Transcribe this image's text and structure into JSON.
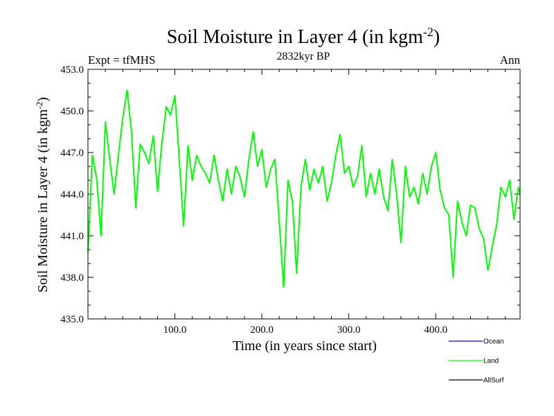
{
  "chart_data": {
    "type": "line",
    "title": "Soil Moisture in Layer 4 (in kgm",
    "title_sup": "-2",
    "title_end": ")",
    "subtitle": "2832kyr BP",
    "left_label": "Expt = tfMHS",
    "right_label": "Ann",
    "xlabel": "Time (in years since start)",
    "ylabel": "Soil Moisture in Layer 4 (in kgm",
    "ylabel_sup": "-2",
    "ylabel_end": ")",
    "xlim": [
      0,
      497
    ],
    "ylim": [
      435.0,
      453.0
    ],
    "x_ticks": [
      100,
      200,
      300,
      400
    ],
    "x_tick_labels": [
      "100.0",
      "200.0",
      "300.0",
      "400.0"
    ],
    "y_ticks": [
      435,
      438,
      441,
      444,
      447,
      450,
      453
    ],
    "y_tick_labels": [
      "435.0",
      "438.0",
      "441.0",
      "444.0",
      "447.0",
      "450.0",
      "453.0"
    ],
    "legend": [
      {
        "name": "Ocean",
        "color": "#0000ff"
      },
      {
        "name": "Land",
        "color": "#00ff00"
      },
      {
        "name": "AllSurf",
        "color": "#000000"
      }
    ],
    "series": [
      {
        "name": "Land",
        "color": "#00ff00",
        "x": [
          0,
          5,
          10,
          15,
          20,
          25,
          30,
          35,
          40,
          45,
          50,
          55,
          60,
          65,
          70,
          75,
          80,
          85,
          90,
          95,
          100,
          105,
          110,
          115,
          120,
          125,
          130,
          135,
          140,
          145,
          150,
          155,
          160,
          165,
          170,
          175,
          180,
          185,
          190,
          195,
          200,
          205,
          210,
          215,
          220,
          225,
          230,
          235,
          240,
          245,
          250,
          255,
          260,
          265,
          270,
          275,
          280,
          285,
          290,
          295,
          300,
          305,
          310,
          315,
          320,
          325,
          330,
          335,
          340,
          345,
          350,
          355,
          360,
          365,
          370,
          375,
          380,
          385,
          390,
          395,
          400,
          405,
          410,
          415,
          420,
          425,
          430,
          435,
          440,
          445,
          450,
          455,
          460,
          465,
          470,
          475,
          480,
          485,
          490,
          495,
          497
        ],
        "values": [
          439.8,
          446.8,
          445.1,
          441.0,
          449.2,
          446.5,
          444.0,
          446.8,
          449.5,
          451.5,
          448.5,
          443.0,
          447.6,
          447.0,
          446.2,
          448.2,
          444.2,
          447.7,
          450.3,
          449.7,
          451.1,
          446.5,
          441.7,
          447.5,
          445.0,
          446.8,
          446.0,
          445.5,
          444.8,
          446.8,
          445.0,
          443.5,
          445.8,
          444.0,
          446.0,
          445.2,
          443.8,
          446.5,
          448.5,
          446.0,
          447.2,
          444.5,
          445.8,
          446.5,
          442.0,
          437.3,
          445.0,
          443.5,
          438.3,
          444.5,
          446.5,
          444.3,
          445.8,
          444.8,
          446.0,
          443.5,
          444.8,
          446.8,
          448.3,
          445.5,
          446.0,
          444.5,
          445.3,
          447.5,
          443.8,
          445.5,
          444.0,
          445.8,
          443.8,
          442.8,
          446.5,
          444.0,
          440.5,
          446.0,
          443.8,
          444.5,
          443.3,
          445.5,
          444.0,
          446.0,
          447.0,
          444.3,
          443.0,
          442.5,
          438.0,
          443.5,
          442.0,
          441.0,
          443.2,
          443.0,
          441.5,
          440.8,
          438.5,
          440.2,
          441.8,
          444.5,
          443.8,
          445.0,
          442.2,
          444.5,
          444.0
        ]
      },
      {
        "name": "Ocean",
        "color": "#0000ff",
        "x": [],
        "values": []
      },
      {
        "name": "AllSurf",
        "color": "#000000",
        "x": [],
        "values": []
      }
    ]
  }
}
